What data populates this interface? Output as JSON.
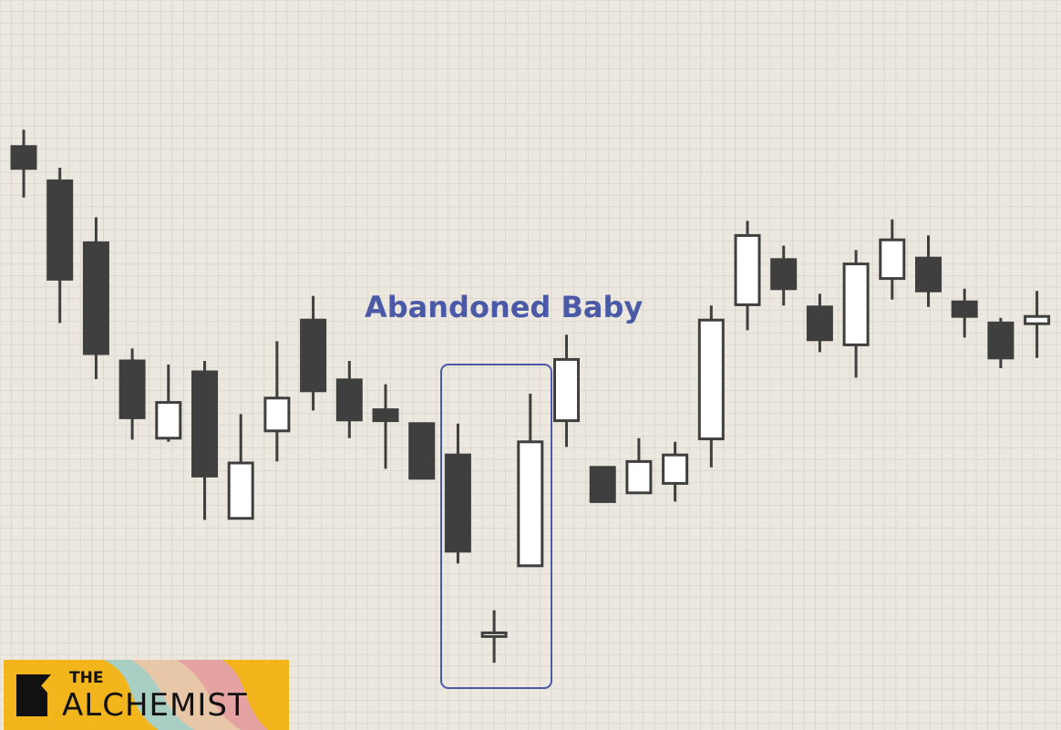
{
  "chart_data": {
    "type": "candlestick",
    "title": "",
    "xlabel": "",
    "ylabel": "",
    "grid": true,
    "ylim": [
      0,
      100
    ],
    "colors": {
      "background": "#ece8e0",
      "grid": "#d9d4cb",
      "bearish": "#3f3f3f",
      "bullish": "#ffffff",
      "outline": "#3f3f3f",
      "pattern_box": "#4a5aa6"
    },
    "candles": [
      {
        "open": 79.9,
        "close": 76.9,
        "high": 82.2,
        "low": 72.9
      },
      {
        "open": 75.2,
        "close": 61.7,
        "high": 77.0,
        "low": 55.7
      },
      {
        "open": 66.7,
        "close": 51.5,
        "high": 70.2,
        "low": 48.0
      },
      {
        "open": 50.5,
        "close": 42.7,
        "high": 52.2,
        "low": 39.7
      },
      {
        "open": 39.9,
        "close": 44.8,
        "high": 50.0,
        "low": 39.4
      },
      {
        "open": 49.0,
        "close": 34.7,
        "high": 50.5,
        "low": 28.7
      },
      {
        "open": 28.9,
        "close": 36.5,
        "high": 43.2,
        "low": 28.9
      },
      {
        "open": 40.9,
        "close": 45.4,
        "high": 53.2,
        "low": 36.7
      },
      {
        "open": 56.1,
        "close": 46.4,
        "high": 59.4,
        "low": 43.7
      },
      {
        "open": 47.9,
        "close": 42.4,
        "high": 50.5,
        "low": 39.9
      },
      {
        "open": 43.8,
        "close": 42.3,
        "high": 47.3,
        "low": 35.7
      },
      {
        "open": 41.9,
        "close": 34.4,
        "high": 41.9,
        "low": 34.4
      },
      {
        "open": 37.6,
        "close": 24.4,
        "high": 41.9,
        "low": 22.7
      },
      {
        "open": 12.7,
        "close": 13.2,
        "high": 16.3,
        "low": 9.1
      },
      {
        "open": 22.4,
        "close": 39.4,
        "high": 46.0,
        "low": 22.4
      },
      {
        "open": 42.3,
        "close": 50.7,
        "high": 54.1,
        "low": 38.7
      },
      {
        "open": 35.9,
        "close": 31.2,
        "high": 35.9,
        "low": 31.2
      },
      {
        "open": 32.4,
        "close": 36.7,
        "high": 39.9,
        "low": 32.4
      },
      {
        "open": 33.7,
        "close": 37.6,
        "high": 39.4,
        "low": 31.2
      },
      {
        "open": 39.8,
        "close": 56.1,
        "high": 58.1,
        "low": 35.9
      },
      {
        "open": 58.2,
        "close": 67.7,
        "high": 69.7,
        "low": 54.7
      },
      {
        "open": 64.4,
        "close": 60.4,
        "high": 66.3,
        "low": 58.1
      },
      {
        "open": 57.9,
        "close": 53.4,
        "high": 59.7,
        "low": 51.7
      },
      {
        "open": 52.7,
        "close": 63.8,
        "high": 65.7,
        "low": 48.2
      },
      {
        "open": 61.8,
        "close": 67.1,
        "high": 69.9,
        "low": 58.9
      },
      {
        "open": 64.6,
        "close": 60.1,
        "high": 67.7,
        "low": 57.9
      },
      {
        "open": 58.6,
        "close": 56.6,
        "high": 60.4,
        "low": 53.7
      },
      {
        "open": 55.7,
        "close": 50.9,
        "high": 56.4,
        "low": 49.5
      },
      {
        "open": 55.6,
        "close": 56.6,
        "high": 60.1,
        "low": 50.9
      }
    ],
    "annotations": [
      {
        "text": "Abandoned Baby",
        "candle_range": [
          12,
          14
        ]
      }
    ]
  },
  "branding": {
    "logo_line1": "THE",
    "logo_line2": "ALCHEMIST"
  }
}
